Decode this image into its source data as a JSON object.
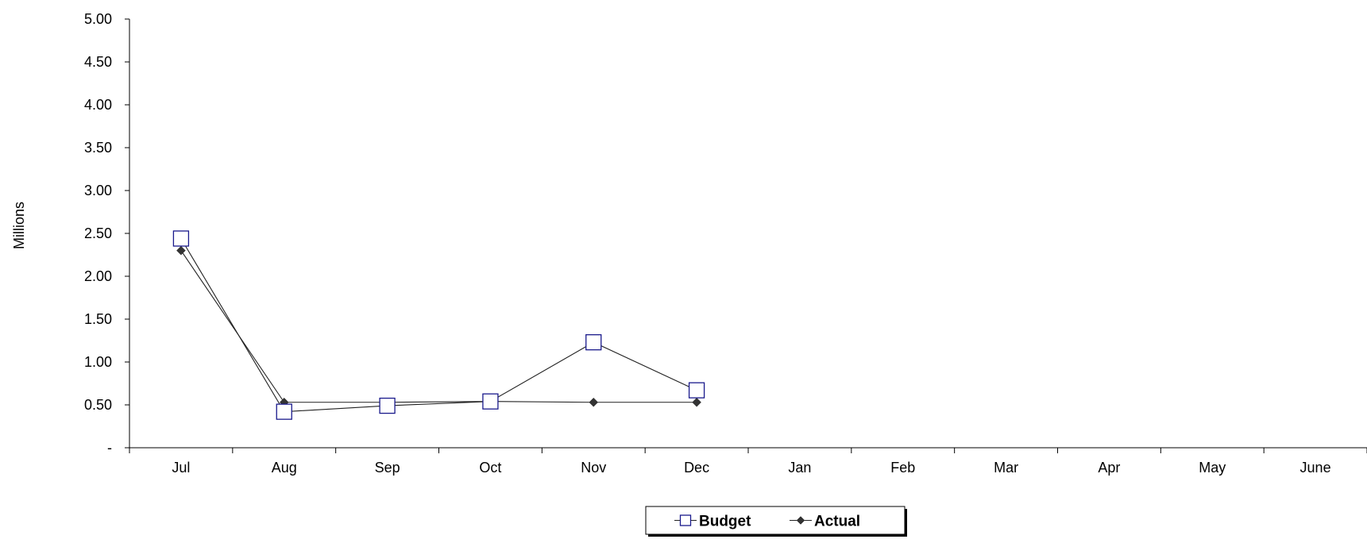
{
  "chart_data": {
    "type": "line",
    "ylabel": "Millions",
    "xlabel": "",
    "ylim": [
      0,
      5
    ],
    "y_ticks": [
      0,
      0.5,
      1,
      1.5,
      2,
      2.5,
      3,
      3.5,
      4,
      4.5,
      5
    ],
    "y_tick_labels": [
      "-",
      "0.50",
      "1.00",
      "1.50",
      "2.00",
      "2.50",
      "3.00",
      "3.50",
      "4.00",
      "4.50",
      "5.00"
    ],
    "categories": [
      "Jul",
      "Aug",
      "Sep",
      "Oct",
      "Nov",
      "Dec",
      "Jan",
      "Feb",
      "Mar",
      "Apr",
      "May",
      "June"
    ],
    "grid": false,
    "legend_position": "bottom",
    "series": [
      {
        "name": "Budget",
        "marker": "open-square",
        "marker_color": "#1a1a8c",
        "line_color": "#222222",
        "values": [
          2.44,
          0.42,
          0.49,
          0.54,
          1.23,
          0.67,
          null,
          null,
          null,
          null,
          null,
          null
        ]
      },
      {
        "name": "Actual",
        "marker": "filled-diamond",
        "marker_color": "#333333",
        "line_color": "#222222",
        "values": [
          2.3,
          0.53,
          0.53,
          0.54,
          0.53,
          0.53,
          null,
          null,
          null,
          null,
          null,
          null
        ]
      }
    ]
  }
}
